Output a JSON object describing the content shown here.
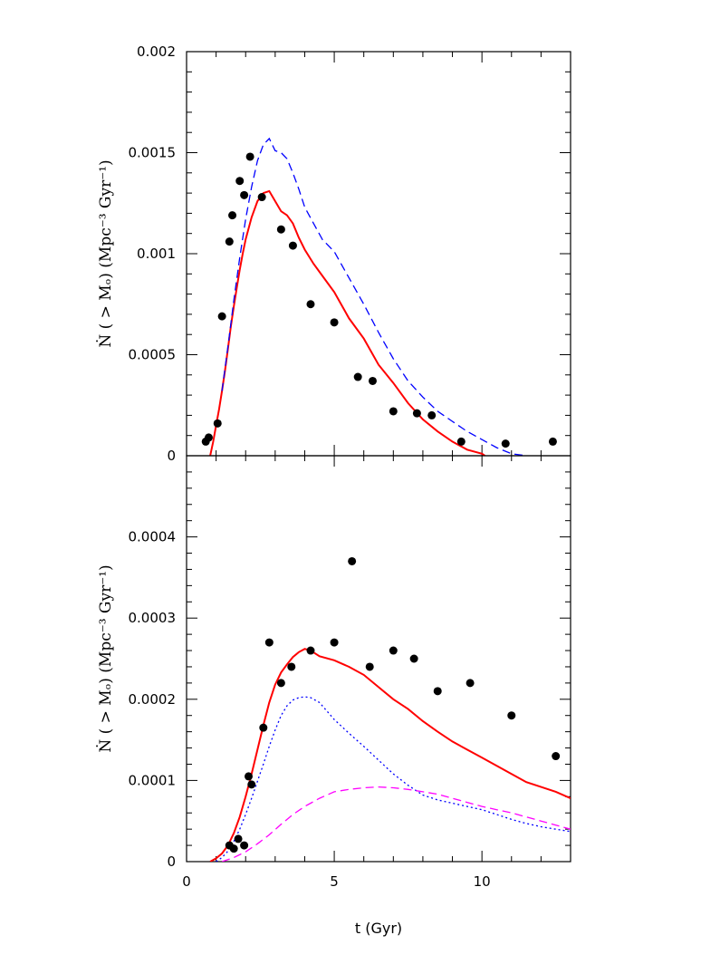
{
  "chart_data": [
    {
      "type": "line",
      "xlabel": "t (Gyr)",
      "ylabel": "Ṅ ( > Mₒ)  (Mpc⁻³ Gyr⁻¹)",
      "xlim": [
        0,
        13
      ],
      "ylim": [
        0,
        0.002
      ],
      "yticks": [
        0,
        0.0005,
        0.001,
        0.0015,
        0.002
      ],
      "ytick_labels": [
        "0",
        "0.0005",
        "0.001",
        "0.0015",
        "0.002"
      ],
      "xticks": [
        0,
        5,
        10
      ],
      "grid": false,
      "series": [
        {
          "style": "solid",
          "color": "#ff0000",
          "x": [
            0.8,
            0.9,
            1.0,
            1.1,
            1.2,
            1.3,
            1.4,
            1.5,
            1.6,
            1.7,
            1.8,
            1.9,
            2.0,
            2.2,
            2.4,
            2.6,
            2.8,
            3.0,
            3.2,
            3.4,
            3.6,
            3.8,
            4.0,
            4.3,
            4.6,
            5.0,
            5.5,
            6.0,
            6.5,
            7.0,
            7.5,
            8.0,
            8.5,
            9.0,
            9.5,
            10.0,
            10.1
          ],
          "y": [
            0.0,
            7e-05,
            0.00015,
            0.00023,
            0.00032,
            0.00042,
            0.00053,
            0.00064,
            0.00074,
            0.00083,
            0.00092,
            0.001,
            0.00107,
            0.00118,
            0.00126,
            0.0013,
            0.00131,
            0.00126,
            0.00121,
            0.00119,
            0.00115,
            0.00108,
            0.00102,
            0.00095,
            0.00089,
            0.00081,
            0.00068,
            0.00058,
            0.00045,
            0.00036,
            0.00026,
            0.00018,
            0.00012,
            7e-05,
            3e-05,
            1e-05,
            0.0
          ]
        },
        {
          "style": "dashed",
          "color": "#0000ff",
          "x": [
            1.2,
            1.4,
            1.6,
            1.8,
            2.0,
            2.2,
            2.4,
            2.6,
            2.8,
            3.0,
            3.2,
            3.4,
            3.6,
            3.8,
            4.0,
            4.3,
            4.6,
            5.0,
            5.5,
            6.0,
            6.5,
            7.0,
            7.5,
            8.0,
            8.5,
            9.0,
            9.5,
            10.0,
            10.5,
            11.0,
            11.5
          ],
          "y": [
            0.00032,
            0.00054,
            0.00077,
            0.00098,
            0.00117,
            0.00133,
            0.00146,
            0.00154,
            0.00157,
            0.00151,
            0.0015,
            0.00147,
            0.0014,
            0.00132,
            0.00123,
            0.00115,
            0.00107,
            0.00101,
            0.00088,
            0.00075,
            0.00061,
            0.00048,
            0.00037,
            0.00029,
            0.00022,
            0.00017,
            0.00012,
            8e-05,
            4e-05,
            1e-05,
            0.0
          ]
        },
        {
          "style": "points",
          "color": "#000000",
          "x": [
            0.65,
            0.75,
            1.05,
            1.2,
            1.45,
            1.55,
            1.8,
            1.95,
            2.15,
            2.55,
            3.2,
            3.6,
            4.2,
            5.0,
            5.8,
            6.3,
            7.0,
            7.8,
            8.3,
            9.3,
            10.8,
            12.4
          ],
          "y": [
            7e-05,
            9e-05,
            0.00016,
            0.00069,
            0.00106,
            0.00119,
            0.00136,
            0.00129,
            0.00148,
            0.00128,
            0.00112,
            0.00104,
            0.00075,
            0.00066,
            0.00039,
            0.00037,
            0.00022,
            0.00021,
            0.0002,
            7e-05,
            6e-05,
            7e-05
          ]
        }
      ]
    },
    {
      "type": "line",
      "xlabel": "t (Gyr)",
      "ylabel": "Ṅ ( > Mₒ)  (Mpc⁻³ Gyr⁻¹)",
      "xlim": [
        0,
        13
      ],
      "ylim": [
        0,
        0.0005
      ],
      "yticks": [
        0,
        0.0001,
        0.0002,
        0.0003,
        0.0004
      ],
      "ytick_labels": [
        "0",
        "0.0001",
        "0.0002",
        "0.0003",
        "0.0004"
      ],
      "xticks": [
        0,
        5,
        10
      ],
      "xtick_labels": [
        "0",
        "5",
        "10"
      ],
      "grid": false,
      "series": [
        {
          "style": "solid",
          "color": "#ff0000",
          "x": [
            0.8,
            1.0,
            1.2,
            1.4,
            1.6,
            1.8,
            2.0,
            2.2,
            2.4,
            2.6,
            2.8,
            3.0,
            3.2,
            3.4,
            3.6,
            3.8,
            4.0,
            4.2,
            4.5,
            5.0,
            5.5,
            6.0,
            6.5,
            7.0,
            7.5,
            8.0,
            8.5,
            9.0,
            9.5,
            10.0,
            10.5,
            11.0,
            11.5,
            12.0,
            12.5,
            13.0
          ],
          "y": [
            0.0,
            4e-06,
            1e-05,
            2e-05,
            3.5e-05,
            5.5e-05,
            8e-05,
            0.000108,
            0.000138,
            0.000168,
            0.000196,
            0.000218,
            0.000233,
            0.000243,
            0.000252,
            0.000258,
            0.000262,
            0.00026,
            0.000253,
            0.000248,
            0.00024,
            0.00023,
            0.000215,
            0.0002,
            0.000188,
            0.000173,
            0.00016,
            0.000148,
            0.000138,
            0.000128,
            0.000118,
            0.000108,
            9.8e-05,
            9.2e-05,
            8.6e-05,
            7.8e-05
          ]
        },
        {
          "style": "dotted",
          "color": "#0000ff",
          "x": [
            1.0,
            1.2,
            1.4,
            1.6,
            1.8,
            2.0,
            2.2,
            2.4,
            2.6,
            2.8,
            3.0,
            3.2,
            3.4,
            3.6,
            3.8,
            4.0,
            4.2,
            4.5,
            5.0,
            5.5,
            6.0,
            6.5,
            7.0,
            7.5,
            8.0,
            8.5,
            9.0,
            9.5,
            10.0,
            10.5,
            11.0,
            11.5,
            12.0,
            12.5,
            13.0
          ],
          "y": [
            0.0,
            5e-06,
            1.3e-05,
            2.5e-05,
            4e-05,
            5.8e-05,
            7.8e-05,
            9.9e-05,
            0.00012,
            0.000142,
            0.000162,
            0.00018,
            0.000192,
            0.000199,
            0.000202,
            0.000203,
            0.000202,
            0.000196,
            0.000175,
            0.000158,
            0.000142,
            0.000125,
            0.000108,
            9.4e-05,
            8.2e-05,
            7.6e-05,
            7.2e-05,
            6.8e-05,
            6.4e-05,
            5.8e-05,
            5.2e-05,
            4.7e-05,
            4.3e-05,
            4e-05,
            3.7e-05
          ]
        },
        {
          "style": "dashed",
          "color": "#ff00ff",
          "x": [
            1.2,
            1.6,
            2.0,
            2.4,
            2.8,
            3.2,
            3.6,
            4.0,
            4.5,
            5.0,
            5.5,
            6.0,
            6.5,
            7.0,
            7.5,
            8.0,
            8.5,
            9.0,
            9.5,
            10.0,
            10.5,
            11.0,
            11.5,
            12.0,
            12.5,
            13.0
          ],
          "y": [
            0.0,
            5e-06,
            1.2e-05,
            2.2e-05,
            3.3e-05,
            4.6e-05,
            5.8e-05,
            6.8e-05,
            7.8e-05,
            8.6e-05,
            8.9e-05,
            9.1e-05,
            9.2e-05,
            9.1e-05,
            8.9e-05,
            8.6e-05,
            8.3e-05,
            7.8e-05,
            7.3e-05,
            6.8e-05,
            6.4e-05,
            6e-05,
            5.5e-05,
            5e-05,
            4.5e-05,
            4e-05
          ]
        },
        {
          "style": "points",
          "color": "#000000",
          "x": [
            1.45,
            1.6,
            1.75,
            1.95,
            2.1,
            2.2,
            2.6,
            2.8,
            3.2,
            3.55,
            4.2,
            5.0,
            5.6,
            6.2,
            7.0,
            7.7,
            8.5,
            9.6,
            11.0,
            12.5
          ],
          "y": [
            2e-05,
            1.6e-05,
            2.8e-05,
            2e-05,
            0.000105,
            9.5e-05,
            0.000165,
            0.00027,
            0.00022,
            0.00024,
            0.00026,
            0.00027,
            0.00037,
            0.00024,
            0.00026,
            0.00025,
            0.00021,
            0.00022,
            0.00018,
            0.00013
          ]
        }
      ]
    }
  ]
}
